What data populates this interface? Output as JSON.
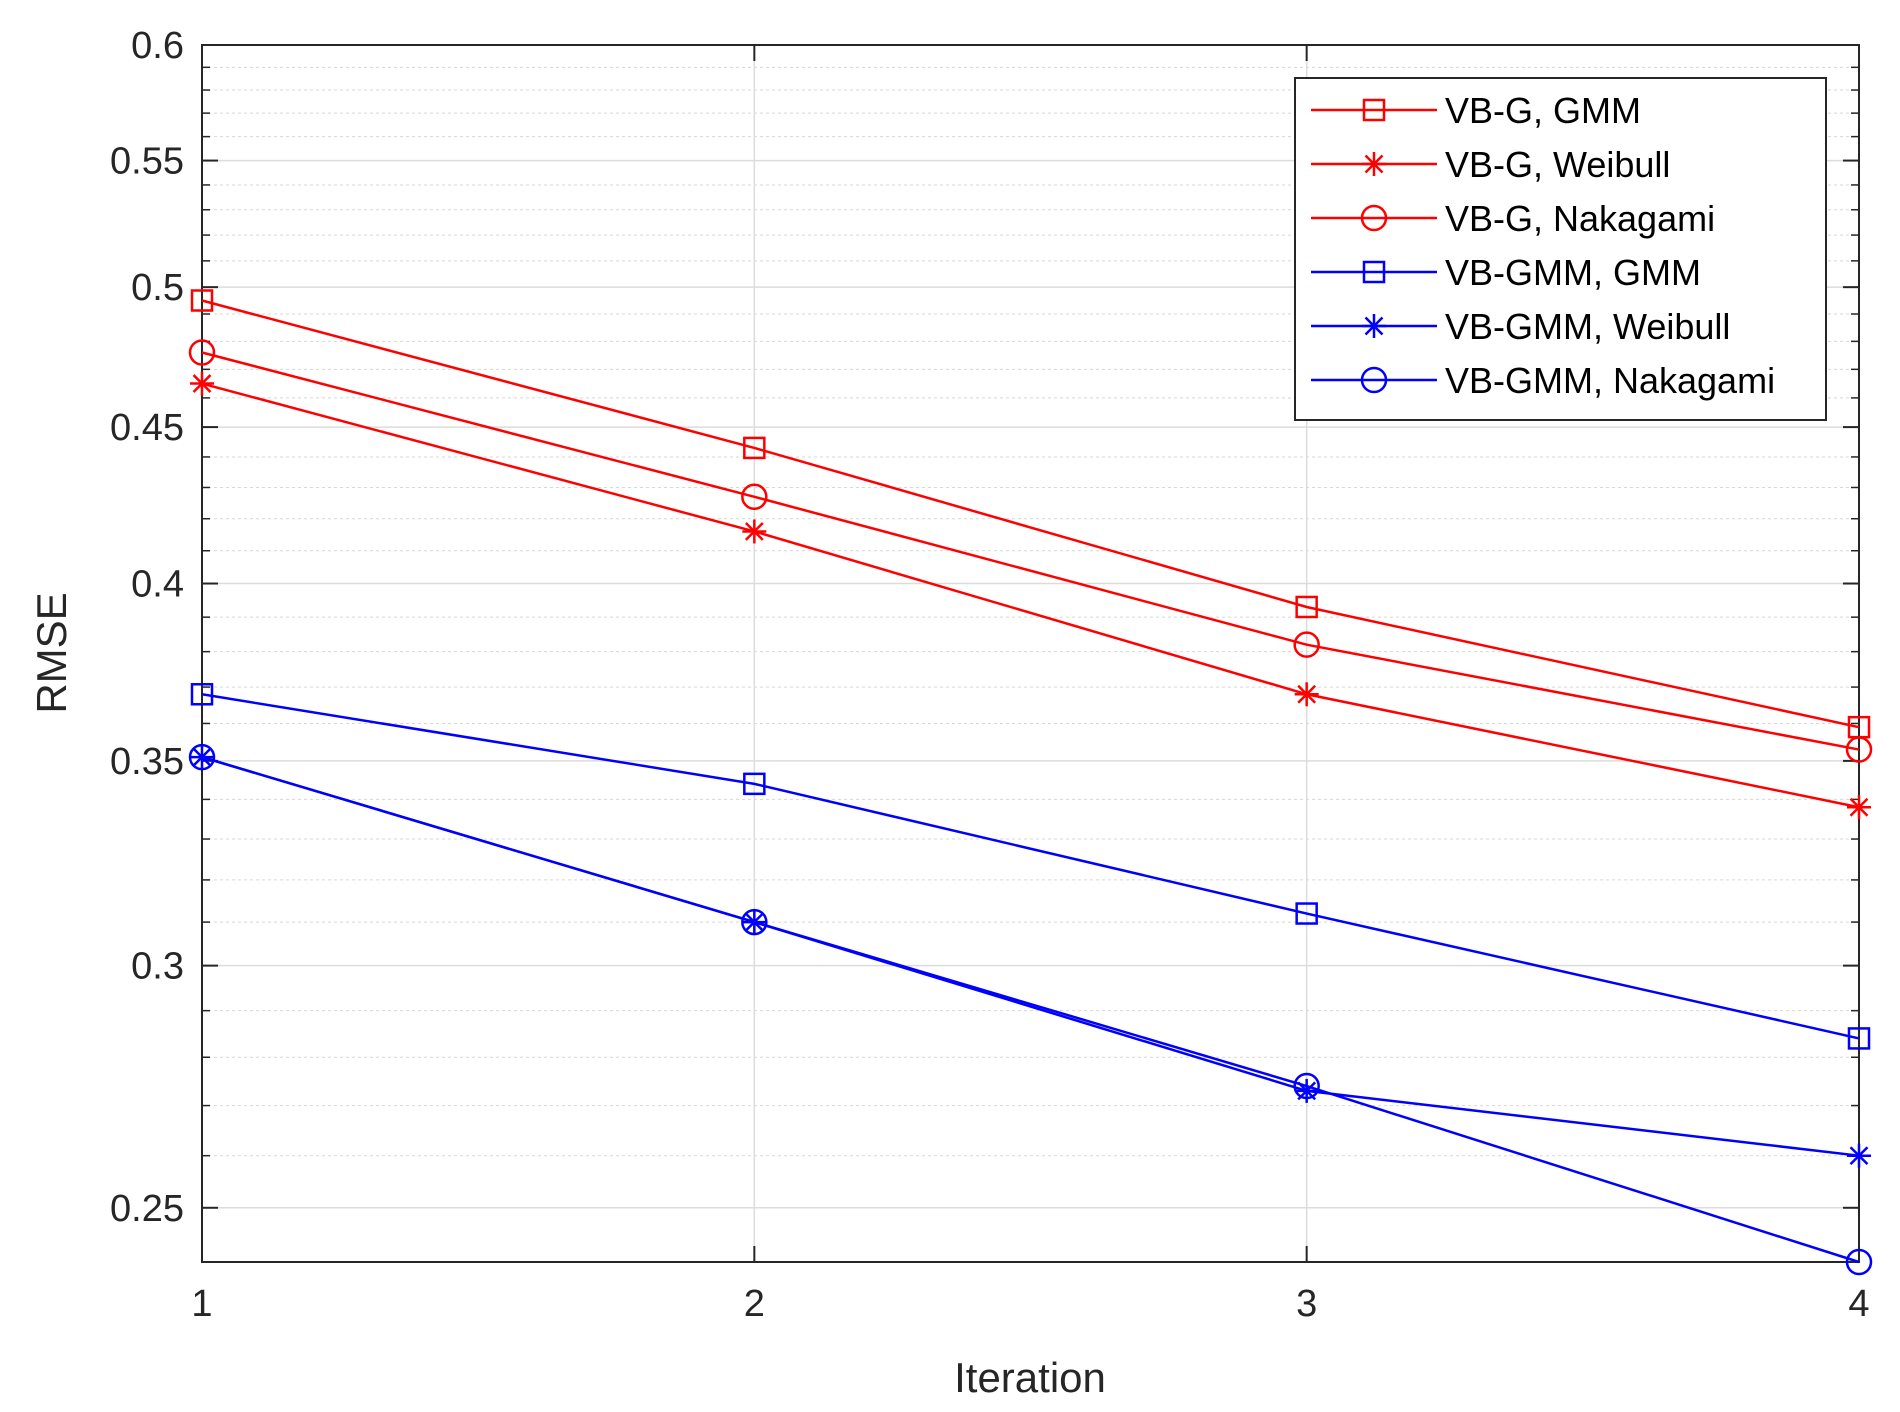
{
  "chart_data": {
    "type": "line",
    "title": "",
    "xlabel": "Iteration",
    "ylabel": "RMSE",
    "x": [
      1,
      2,
      3,
      4
    ],
    "xlim": [
      1,
      4
    ],
    "ylim": [
      0.24,
      0.6
    ],
    "yscale": "log",
    "grid": true,
    "minor_grid": true,
    "legend_position": "top-right",
    "xticks": [
      1,
      2,
      3,
      4
    ],
    "xtick_labels": [
      "1",
      "2",
      "3",
      "4"
    ],
    "yticks": [
      0.25,
      0.3,
      0.35,
      0.4,
      0.45,
      0.5,
      0.55,
      0.6
    ],
    "ytick_labels": [
      "0.25",
      "0.3",
      "0.35",
      "0.4",
      "0.45",
      "0.5",
      "0.55",
      "0.6"
    ],
    "series": [
      {
        "name": "VB-G, GMM",
        "color": "#ff0000",
        "marker": "square",
        "values": [
          0.495,
          0.443,
          0.393,
          0.359
        ]
      },
      {
        "name": "VB-G, Weibull",
        "color": "#ff0000",
        "marker": "asterisk",
        "values": [
          0.465,
          0.416,
          0.368,
          0.338
        ]
      },
      {
        "name": "VB-G, Nakagami",
        "color": "#ff0000",
        "marker": "circle",
        "values": [
          0.476,
          0.427,
          0.382,
          0.353
        ]
      },
      {
        "name": "VB-GMM, GMM",
        "color": "#0000ff",
        "marker": "square",
        "values": [
          0.368,
          0.344,
          0.312,
          0.284
        ]
      },
      {
        "name": "VB-GMM, Weibull",
        "color": "#0000ff",
        "marker": "asterisk",
        "values": [
          0.351,
          0.31,
          0.273,
          0.26
        ]
      },
      {
        "name": "VB-GMM, Nakagami",
        "color": "#0000ff",
        "marker": "circle",
        "values": [
          0.351,
          0.31,
          0.274,
          0.24
        ]
      }
    ]
  }
}
